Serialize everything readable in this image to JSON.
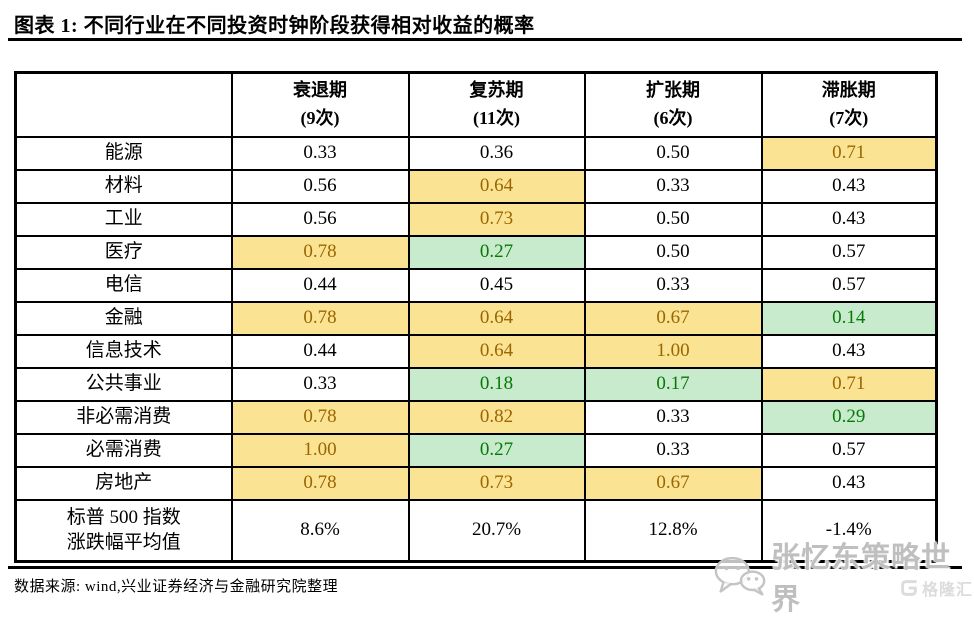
{
  "figure": {
    "title": "图表 1: 不同行业在不同投资时钟阶段获得相对收益的概率",
    "source": "数据来源: wind,兴业证券经济与金融研究院整理"
  },
  "watermarks": {
    "wechat_account": "张忆东策略世界",
    "platform_logo": "格隆汇"
  },
  "colors": {
    "highlight_yellow_bg": "#FBE394",
    "highlight_yellow_text": "#9C6500",
    "highlight_green_bg": "#C9EBCD",
    "highlight_green_text": "#067806",
    "border": "#000000"
  },
  "chart_data": {
    "type": "table",
    "title": "图表 1: 不同行业在不同投资时钟阶段获得相对收益的概率",
    "column_headers": [
      {
        "phase": "",
        "count": ""
      },
      {
        "phase": "衰退期",
        "count": "(9次)"
      },
      {
        "phase": "复苏期",
        "count": "(11次)"
      },
      {
        "phase": "扩张期",
        "count": "(6次)"
      },
      {
        "phase": "滞胀期",
        "count": "(7次)"
      }
    ],
    "rows": [
      {
        "label": "能源",
        "cells": [
          {
            "value": "0.33",
            "highlight": "none"
          },
          {
            "value": "0.36",
            "highlight": "none"
          },
          {
            "value": "0.50",
            "highlight": "none"
          },
          {
            "value": "0.71",
            "highlight": "yellow"
          }
        ]
      },
      {
        "label": "材料",
        "cells": [
          {
            "value": "0.56",
            "highlight": "none"
          },
          {
            "value": "0.64",
            "highlight": "yellow"
          },
          {
            "value": "0.33",
            "highlight": "none"
          },
          {
            "value": "0.43",
            "highlight": "none"
          }
        ]
      },
      {
        "label": "工业",
        "cells": [
          {
            "value": "0.56",
            "highlight": "none"
          },
          {
            "value": "0.73",
            "highlight": "yellow"
          },
          {
            "value": "0.50",
            "highlight": "none"
          },
          {
            "value": "0.43",
            "highlight": "none"
          }
        ]
      },
      {
        "label": "医疗",
        "cells": [
          {
            "value": "0.78",
            "highlight": "yellow"
          },
          {
            "value": "0.27",
            "highlight": "green"
          },
          {
            "value": "0.50",
            "highlight": "none"
          },
          {
            "value": "0.57",
            "highlight": "none"
          }
        ]
      },
      {
        "label": "电信",
        "cells": [
          {
            "value": "0.44",
            "highlight": "none"
          },
          {
            "value": "0.45",
            "highlight": "none"
          },
          {
            "value": "0.33",
            "highlight": "none"
          },
          {
            "value": "0.57",
            "highlight": "none"
          }
        ]
      },
      {
        "label": "金融",
        "cells": [
          {
            "value": "0.78",
            "highlight": "yellow"
          },
          {
            "value": "0.64",
            "highlight": "yellow"
          },
          {
            "value": "0.67",
            "highlight": "yellow"
          },
          {
            "value": "0.14",
            "highlight": "green"
          }
        ]
      },
      {
        "label": "信息技术",
        "cells": [
          {
            "value": "0.44",
            "highlight": "none"
          },
          {
            "value": "0.64",
            "highlight": "yellow"
          },
          {
            "value": "1.00",
            "highlight": "yellow"
          },
          {
            "value": "0.43",
            "highlight": "none"
          }
        ]
      },
      {
        "label": "公共事业",
        "cells": [
          {
            "value": "0.33",
            "highlight": "none"
          },
          {
            "value": "0.18",
            "highlight": "green"
          },
          {
            "value": "0.17",
            "highlight": "green"
          },
          {
            "value": "0.71",
            "highlight": "yellow"
          }
        ]
      },
      {
        "label": "非必需消费",
        "cells": [
          {
            "value": "0.78",
            "highlight": "yellow"
          },
          {
            "value": "0.82",
            "highlight": "yellow"
          },
          {
            "value": "0.33",
            "highlight": "none"
          },
          {
            "value": "0.29",
            "highlight": "green"
          }
        ]
      },
      {
        "label": "必需消费",
        "cells": [
          {
            "value": "1.00",
            "highlight": "yellow"
          },
          {
            "value": "0.27",
            "highlight": "green"
          },
          {
            "value": "0.33",
            "highlight": "none"
          },
          {
            "value": "0.57",
            "highlight": "none"
          }
        ]
      },
      {
        "label": "房地产",
        "cells": [
          {
            "value": "0.78",
            "highlight": "yellow"
          },
          {
            "value": "0.73",
            "highlight": "yellow"
          },
          {
            "value": "0.67",
            "highlight": "yellow"
          },
          {
            "value": "0.43",
            "highlight": "none"
          }
        ]
      },
      {
        "label": "标普 500 指数\n涨跌幅平均值",
        "cells": [
          {
            "value": "8.6%",
            "highlight": "none"
          },
          {
            "value": "20.7%",
            "highlight": "none"
          },
          {
            "value": "12.8%",
            "highlight": "none"
          },
          {
            "value": "-1.4%",
            "highlight": "none"
          }
        ]
      }
    ],
    "legend_note": "",
    "grid": true
  }
}
